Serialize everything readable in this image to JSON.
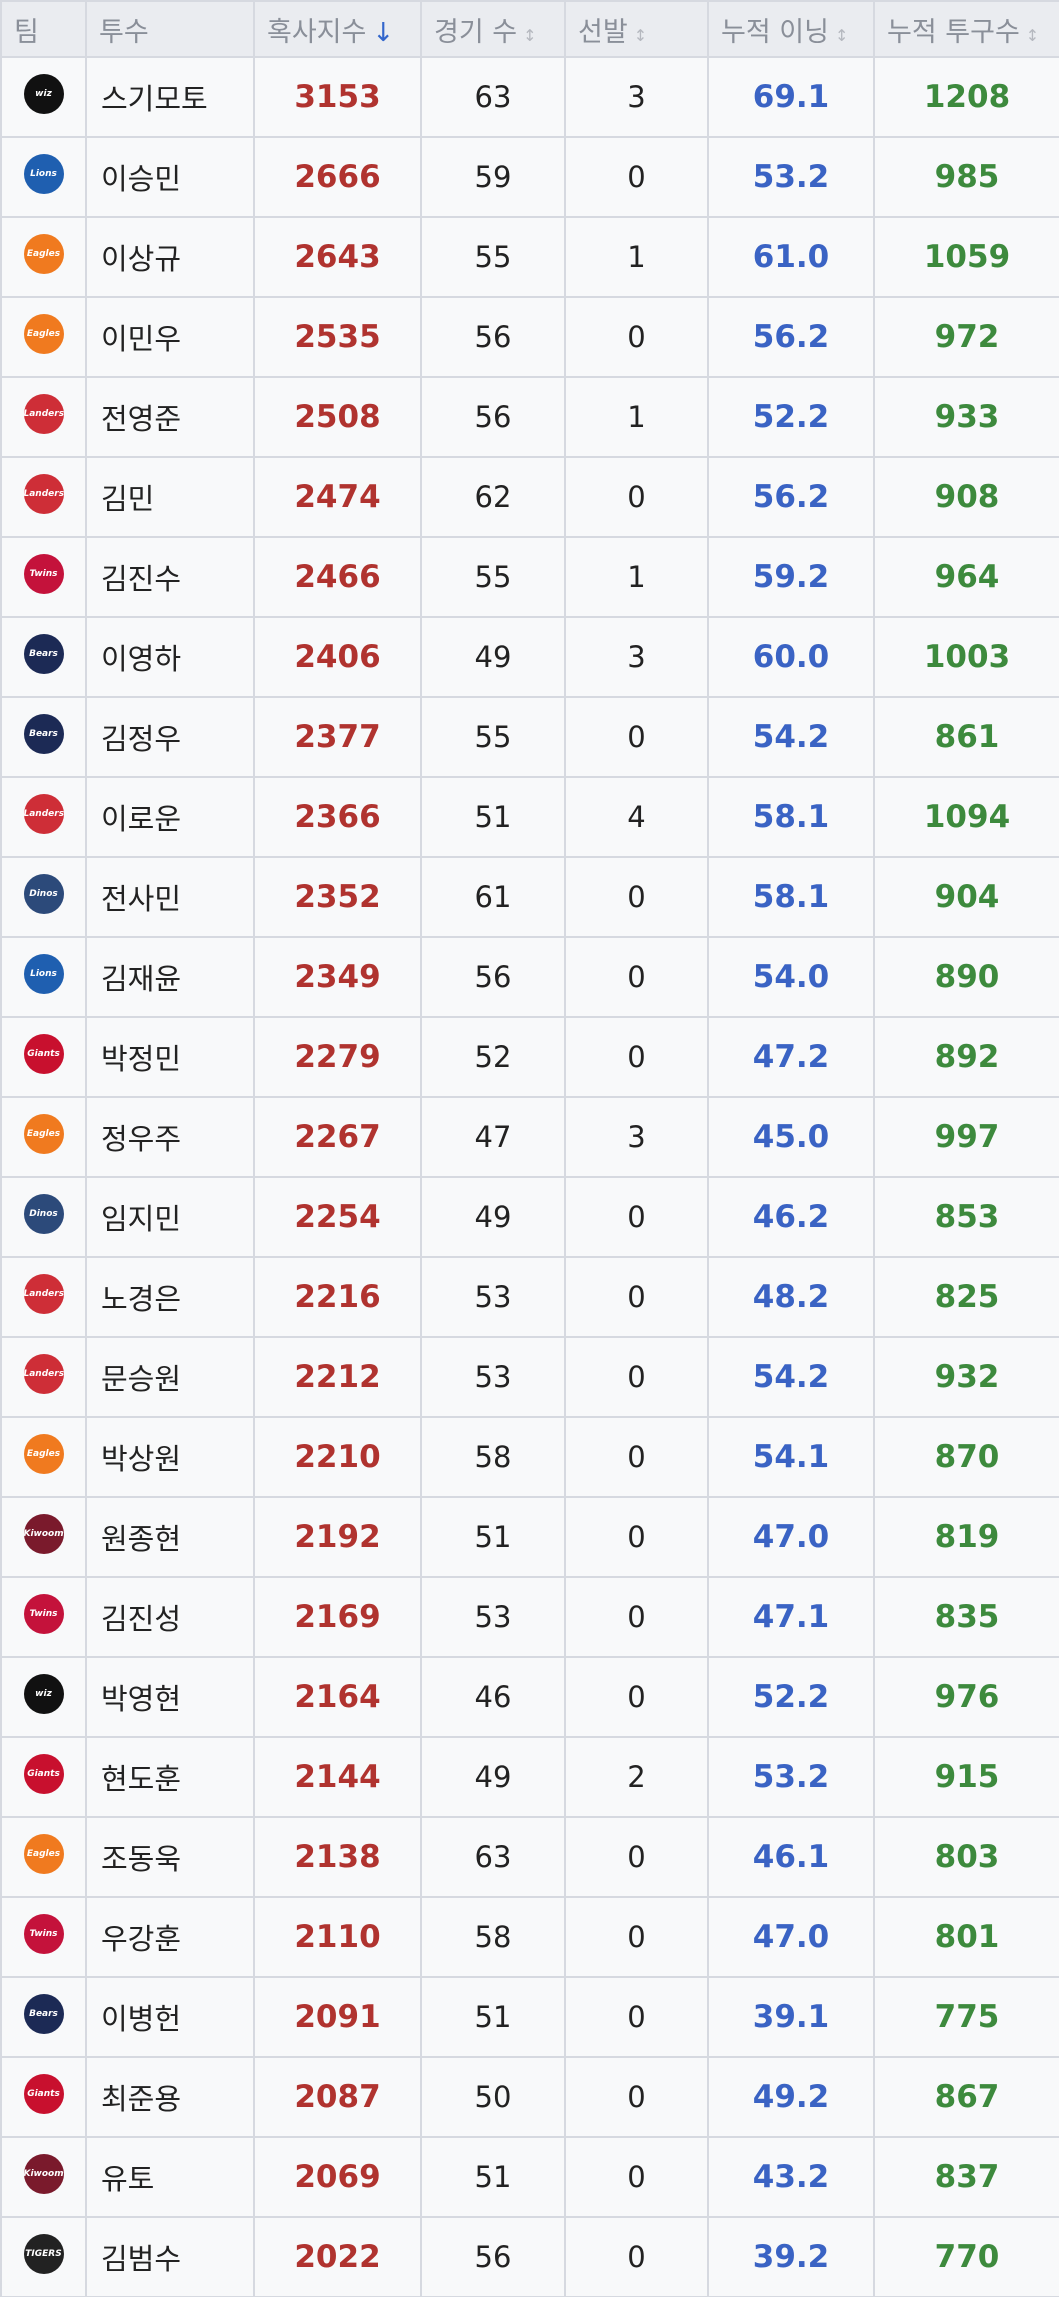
{
  "table": {
    "headers": [
      "팀",
      "투수",
      "혹사지수",
      "경기 수",
      "선발",
      "누적 이닝",
      "누적 투구수"
    ],
    "rows": [
      [
        "wiz",
        "스기모토",
        3153,
        63,
        3,
        "69.1",
        1208
      ],
      [
        "Lions",
        "이승민",
        2666,
        59,
        0,
        "53.2",
        985
      ],
      [
        "Eagles",
        "이상규",
        2643,
        55,
        1,
        "61.0",
        1059
      ],
      [
        "Eagles",
        "이민우",
        2535,
        56,
        0,
        "56.2",
        972
      ],
      [
        "Landers",
        "전영준",
        2508,
        56,
        1,
        "52.2",
        933
      ],
      [
        "Landers",
        "김민",
        2474,
        62,
        0,
        "56.2",
        908
      ],
      [
        "Twins",
        "김진수",
        2466,
        55,
        1,
        "59.2",
        964
      ],
      [
        "Bears",
        "이영하",
        2406,
        49,
        3,
        "60.0",
        1003
      ],
      [
        "Bears",
        "김정우",
        2377,
        55,
        0,
        "54.2",
        861
      ],
      [
        "Landers",
        "이로운",
        2366,
        51,
        4,
        "58.1",
        1094
      ],
      [
        "Dinos",
        "전사민",
        2352,
        61,
        0,
        "58.1",
        904
      ],
      [
        "Lions",
        "김재윤",
        2349,
        56,
        0,
        "54.0",
        890
      ],
      [
        "Giants",
        "박정민",
        2279,
        52,
        0,
        "47.2",
        892
      ],
      [
        "Eagles",
        "정우주",
        2267,
        47,
        3,
        "45.0",
        997
      ],
      [
        "Dinos",
        "임지민",
        2254,
        49,
        0,
        "46.2",
        853
      ],
      [
        "Landers",
        "노경은",
        2216,
        53,
        0,
        "48.2",
        825
      ],
      [
        "Landers",
        "문승원",
        2212,
        53,
        0,
        "54.2",
        932
      ],
      [
        "Eagles",
        "박상원",
        2210,
        58,
        0,
        "54.1",
        870
      ],
      [
        "Kiwoom",
        "원종현",
        2192,
        51,
        0,
        "47.0",
        819
      ],
      [
        "Twins",
        "김진성",
        2169,
        53,
        0,
        "47.1",
        835
      ],
      [
        "wiz",
        "박영현",
        2164,
        46,
        0,
        "52.2",
        976
      ],
      [
        "Giants",
        "현도훈",
        2144,
        49,
        2,
        "53.2",
        915
      ],
      [
        "Eagles",
        "조동욱",
        2138,
        63,
        0,
        "46.1",
        803
      ],
      [
        "Twins",
        "우강훈",
        2110,
        58,
        0,
        "47.0",
        801
      ],
      [
        "Bears",
        "이병헌",
        2091,
        51,
        0,
        "39.1",
        775
      ],
      [
        "Giants",
        "최준용",
        2087,
        50,
        0,
        "49.2",
        867
      ],
      [
        "Kiwoom",
        "유토",
        2069,
        51,
        0,
        "43.2",
        837
      ],
      [
        "TIGERS",
        "김범수",
        2022,
        56,
        0,
        "39.2",
        770
      ]
    ]
  }
}
